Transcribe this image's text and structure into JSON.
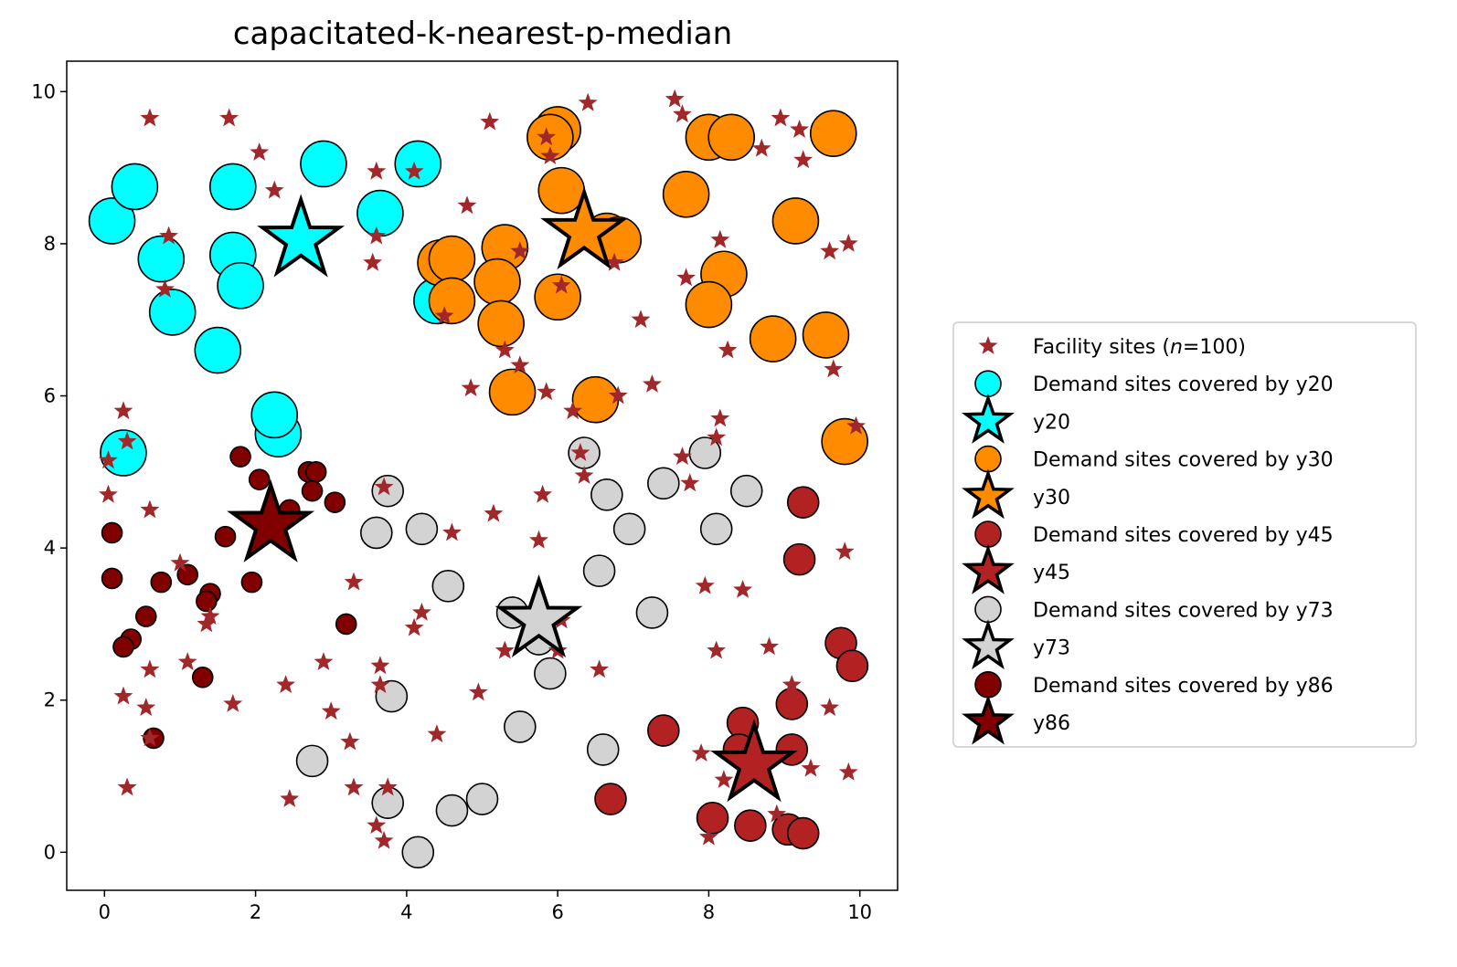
{
  "chart_data": {
    "type": "scatter",
    "title": "capacitated-k-nearest-p-median",
    "xlabel": "",
    "ylabel": "",
    "xlim": [
      -0.5,
      10.5
    ],
    "ylim": [
      -0.5,
      10.4
    ],
    "xticks": [
      0,
      2,
      4,
      6,
      8,
      10
    ],
    "yticks": [
      0,
      2,
      4,
      6,
      8,
      10
    ],
    "grid": false,
    "legend_position": "outside right, center",
    "facilities": {
      "name": "Facility sites (n=100)",
      "legend_prefix": "Facility sites (",
      "legend_n": "n",
      "legend_suffix": "=100)",
      "color": "#a0282a",
      "points": [
        [
          0.6,
          9.65
        ],
        [
          1.65,
          9.65
        ],
        [
          2.05,
          9.2
        ],
        [
          2.25,
          8.7
        ],
        [
          0.85,
          8.1
        ],
        [
          0.8,
          7.4
        ],
        [
          3.6,
          8.95
        ],
        [
          4.1,
          8.95
        ],
        [
          3.6,
          8.1
        ],
        [
          3.55,
          7.75
        ],
        [
          4.8,
          8.5
        ],
        [
          5.1,
          9.6
        ],
        [
          5.85,
          9.4
        ],
        [
          5.9,
          9.15
        ],
        [
          6.4,
          9.85
        ],
        [
          7.55,
          9.9
        ],
        [
          7.65,
          9.7
        ],
        [
          8.7,
          9.25
        ],
        [
          8.95,
          9.65
        ],
        [
          9.2,
          9.5
        ],
        [
          9.25,
          9.1
        ],
        [
          8.15,
          8.05
        ],
        [
          9.6,
          7.9
        ],
        [
          9.85,
          8.0
        ],
        [
          6.05,
          7.45
        ],
        [
          6.75,
          7.75
        ],
        [
          7.7,
          7.55
        ],
        [
          7.1,
          7.0
        ],
        [
          4.5,
          7.05
        ],
        [
          5.3,
          6.6
        ],
        [
          5.5,
          6.4
        ],
        [
          4.85,
          6.1
        ],
        [
          5.85,
          6.05
        ],
        [
          6.8,
          6.0
        ],
        [
          7.25,
          6.15
        ],
        [
          9.65,
          6.35
        ],
        [
          8.25,
          6.6
        ],
        [
          5.5,
          7.9
        ],
        [
          0.25,
          5.8
        ],
        [
          0.3,
          5.4
        ],
        [
          0.05,
          5.15
        ],
        [
          0.05,
          4.7
        ],
        [
          0.6,
          4.5
        ],
        [
          3.7,
          4.8
        ],
        [
          5.15,
          4.45
        ],
        [
          5.8,
          4.7
        ],
        [
          4.6,
          4.2
        ],
        [
          5.75,
          4.1
        ],
        [
          6.3,
          5.25
        ],
        [
          6.35,
          4.95
        ],
        [
          6.2,
          5.8
        ],
        [
          7.65,
          5.2
        ],
        [
          7.75,
          4.85
        ],
        [
          8.15,
          5.7
        ],
        [
          8.1,
          5.45
        ],
        [
          9.95,
          5.6
        ],
        [
          9.8,
          3.95
        ],
        [
          1.0,
          3.8
        ],
        [
          1.4,
          3.1
        ],
        [
          1.35,
          3.0
        ],
        [
          3.3,
          3.55
        ],
        [
          4.2,
          3.15
        ],
        [
          4.1,
          2.95
        ],
        [
          6.05,
          3.05
        ],
        [
          6.0,
          2.65
        ],
        [
          7.95,
          3.5
        ],
        [
          8.45,
          3.45
        ],
        [
          0.6,
          2.4
        ],
        [
          1.1,
          2.5
        ],
        [
          2.4,
          2.2
        ],
        [
          2.9,
          2.5
        ],
        [
          3.65,
          2.45
        ],
        [
          5.3,
          2.65
        ],
        [
          6.55,
          2.4
        ],
        [
          8.1,
          2.65
        ],
        [
          8.8,
          2.7
        ],
        [
          0.25,
          2.05
        ],
        [
          0.55,
          1.9
        ],
        [
          1.7,
          1.95
        ],
        [
          3.0,
          1.85
        ],
        [
          4.95,
          2.1
        ],
        [
          9.6,
          1.9
        ],
        [
          3.25,
          1.45
        ],
        [
          4.4,
          1.55
        ],
        [
          8.2,
          0.95
        ],
        [
          9.35,
          1.1
        ],
        [
          9.85,
          1.05
        ],
        [
          0.3,
          0.85
        ],
        [
          2.45,
          0.7
        ],
        [
          3.3,
          0.85
        ],
        [
          3.75,
          0.85
        ],
        [
          3.6,
          0.35
        ],
        [
          3.7,
          0.15
        ],
        [
          8.0,
          0.2
        ],
        [
          0.6,
          1.5
        ],
        [
          2.3,
          4.2
        ],
        [
          3.65,
          2.2
        ],
        [
          7.9,
          1.3
        ],
        [
          9.1,
          2.2
        ],
        [
          8.9,
          0.5
        ]
      ]
    },
    "groups": [
      {
        "id": "y20",
        "demand_label": "Demand sites covered by y20",
        "facility_label": "y20",
        "color": "#00ffff",
        "size": "large",
        "facility": [
          2.6,
          8.05
        ],
        "points": [
          [
            0.1,
            8.3
          ],
          [
            0.4,
            8.75
          ],
          [
            0.75,
            7.8
          ],
          [
            0.9,
            7.1
          ],
          [
            1.5,
            6.6
          ],
          [
            1.7,
            8.75
          ],
          [
            1.7,
            7.85
          ],
          [
            1.8,
            7.45
          ],
          [
            2.9,
            9.05
          ],
          [
            3.65,
            8.4
          ],
          [
            4.15,
            9.05
          ],
          [
            4.4,
            7.25
          ],
          [
            0.25,
            5.25
          ],
          [
            2.3,
            5.5
          ],
          [
            2.25,
            5.75
          ]
        ]
      },
      {
        "id": "y30",
        "demand_label": "Demand sites covered by y30",
        "facility_label": "y30",
        "color": "#ff8c00",
        "size": "large",
        "facility": [
          6.35,
          8.15
        ],
        "points": [
          [
            6.0,
            9.5
          ],
          [
            5.9,
            9.4
          ],
          [
            6.05,
            8.7
          ],
          [
            6.65,
            8.1
          ],
          [
            6.8,
            8.05
          ],
          [
            4.45,
            7.75
          ],
          [
            4.6,
            7.8
          ],
          [
            4.6,
            7.25
          ],
          [
            5.3,
            7.95
          ],
          [
            5.2,
            7.5
          ],
          [
            5.25,
            6.95
          ],
          [
            6.0,
            7.3
          ],
          [
            5.4,
            6.05
          ],
          [
            6.5,
            5.95
          ],
          [
            7.7,
            8.65
          ],
          [
            8.0,
            9.4
          ],
          [
            8.3,
            9.4
          ],
          [
            9.15,
            8.3
          ],
          [
            8.2,
            7.6
          ],
          [
            8.0,
            7.2
          ],
          [
            8.85,
            6.75
          ],
          [
            9.55,
            6.8
          ],
          [
            9.65,
            9.45
          ],
          [
            9.8,
            5.4
          ]
        ]
      },
      {
        "id": "y45",
        "demand_label": "Demand sites covered by y45",
        "facility_label": "y45",
        "color": "#b22222",
        "size": "medium",
        "facility": [
          8.6,
          1.15
        ],
        "points": [
          [
            9.25,
            4.6
          ],
          [
            9.2,
            3.85
          ],
          [
            9.75,
            2.75
          ],
          [
            9.9,
            2.45
          ],
          [
            9.1,
            1.95
          ],
          [
            7.4,
            1.6
          ],
          [
            8.45,
            1.7
          ],
          [
            8.4,
            1.35
          ],
          [
            9.1,
            1.35
          ],
          [
            6.7,
            0.7
          ],
          [
            8.05,
            0.45
          ],
          [
            8.55,
            0.35
          ],
          [
            9.05,
            0.3
          ],
          [
            9.25,
            0.25
          ]
        ]
      },
      {
        "id": "y73",
        "demand_label": "Demand sites covered by y73",
        "facility_label": "y73",
        "color": "#d3d3d3",
        "size": "medium",
        "facility": [
          5.75,
          3.05
        ],
        "points": [
          [
            3.75,
            4.75
          ],
          [
            3.6,
            4.2
          ],
          [
            4.2,
            4.25
          ],
          [
            4.55,
            3.5
          ],
          [
            3.8,
            2.05
          ],
          [
            2.75,
            1.2
          ],
          [
            3.75,
            0.65
          ],
          [
            4.15,
            0.0
          ],
          [
            4.6,
            0.55
          ],
          [
            5.0,
            0.7
          ],
          [
            5.5,
            1.65
          ],
          [
            5.9,
            2.35
          ],
          [
            5.4,
            3.15
          ],
          [
            5.75,
            2.8
          ],
          [
            6.35,
            5.25
          ],
          [
            6.65,
            4.7
          ],
          [
            6.95,
            4.25
          ],
          [
            6.55,
            3.7
          ],
          [
            7.4,
            4.85
          ],
          [
            7.95,
            5.25
          ],
          [
            8.1,
            4.25
          ],
          [
            8.5,
            4.75
          ],
          [
            7.25,
            3.15
          ],
          [
            6.6,
            1.35
          ]
        ]
      },
      {
        "id": "y86",
        "demand_label": "Demand sites covered by y86",
        "facility_label": "y86",
        "color": "#800000",
        "size": "small",
        "facility": [
          2.2,
          4.3
        ],
        "points": [
          [
            1.8,
            5.2
          ],
          [
            2.05,
            4.9
          ],
          [
            2.7,
            5.0
          ],
          [
            2.8,
            5.0
          ],
          [
            2.75,
            4.75
          ],
          [
            3.05,
            4.6
          ],
          [
            2.45,
            4.5
          ],
          [
            1.6,
            4.15
          ],
          [
            0.1,
            4.2
          ],
          [
            0.1,
            3.6
          ],
          [
            0.75,
            3.55
          ],
          [
            1.1,
            3.65
          ],
          [
            1.4,
            3.4
          ],
          [
            1.35,
            3.3
          ],
          [
            1.95,
            3.55
          ],
          [
            0.55,
            3.1
          ],
          [
            0.35,
            2.8
          ],
          [
            0.25,
            2.7
          ],
          [
            1.3,
            2.3
          ],
          [
            3.2,
            3.0
          ],
          [
            0.65,
            1.5
          ]
        ]
      }
    ]
  }
}
